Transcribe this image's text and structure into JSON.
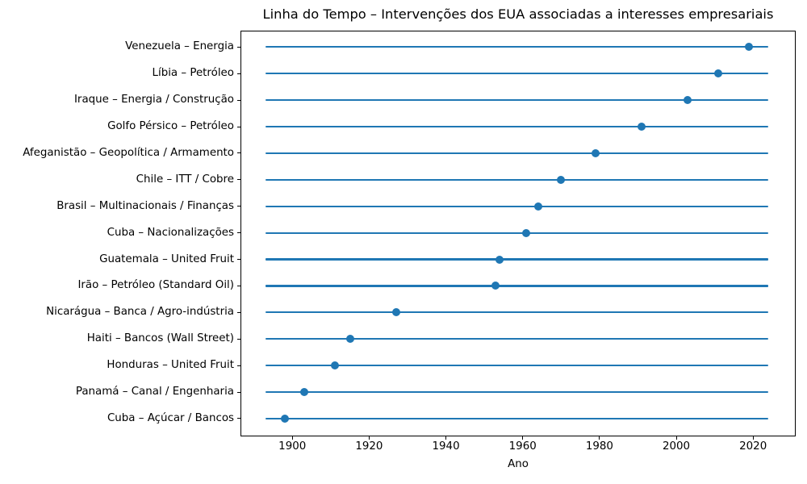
{
  "chart_data": {
    "type": "scatter",
    "variant": "event-timeline",
    "title": "Linha do Tempo – Intervenções dos EUA associadas a interesses empresariais",
    "xlabel": "Ano",
    "ylabel": "",
    "xticks": [
      1900,
      1920,
      1940,
      1960,
      1980,
      2000,
      2020
    ],
    "xlim": [
      1886.5,
      2031.1
    ],
    "line_span": [
      1893,
      2024
    ],
    "grid": false,
    "legend": false,
    "line_color": "#1f77b4",
    "marker_color": "#1f77b4",
    "spine_color": "#000000",
    "events": [
      {
        "label": "Venezuela – Energia",
        "year": 2019
      },
      {
        "label": "Líbia – Petróleo",
        "year": 2011
      },
      {
        "label": "Iraque – Energia / Construção",
        "year": 2003
      },
      {
        "label": "Golfo Pérsico – Petróleo",
        "year": 1991
      },
      {
        "label": "Afeganistão – Geopolítica / Armamento",
        "year": 1979
      },
      {
        "label": "Chile – ITT / Cobre",
        "year": 1970
      },
      {
        "label": "Brasil – Multinacionais / Finanças",
        "year": 1964
      },
      {
        "label": "Cuba – Nacionalizações",
        "year": 1961
      },
      {
        "label": "Guatemala – United Fruit",
        "year": 1954
      },
      {
        "label": "Irão – Petróleo (Standard Oil)",
        "year": 1953
      },
      {
        "label": "Nicarágua – Banca / Agro-indústria",
        "year": 1927
      },
      {
        "label": "Haiti – Bancos (Wall Street)",
        "year": 1915
      },
      {
        "label": "Honduras – United Fruit",
        "year": 1911
      },
      {
        "label": "Panamá – Canal / Engenharia",
        "year": 1903
      },
      {
        "label": "Cuba – Açúcar / Bancos",
        "year": 1898
      }
    ]
  }
}
